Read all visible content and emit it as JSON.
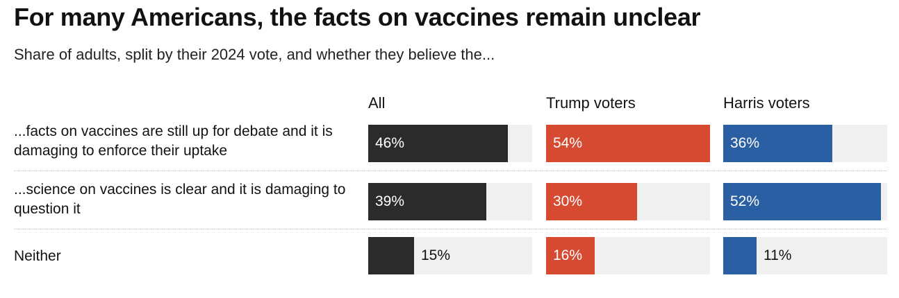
{
  "title": "For many Americans, the facts on vaccines remain unclear",
  "subtitle": "Share of adults, split by their 2024 vote, and whether they believe the...",
  "chart_data": {
    "type": "bar",
    "orientation": "horizontal",
    "xlim": [
      0,
      100
    ],
    "categories": [
      "...facts on vaccines are still up for debate and it is damaging to enforce their uptake",
      "...science on vaccines is clear and it is damaging to question it",
      "Neither"
    ],
    "series": [
      {
        "name": "All",
        "color": "#2b2b2b",
        "values": [
          46,
          39,
          15
        ],
        "labels": [
          "46%",
          "39%",
          "15%"
        ]
      },
      {
        "name": "Trump voters",
        "color": "#d64a32",
        "values": [
          54,
          30,
          16
        ],
        "labels": [
          "54%",
          "30%",
          "16%"
        ]
      },
      {
        "name": "Harris voters",
        "color": "#2b5fa3",
        "values": [
          36,
          52,
          11
        ],
        "labels": [
          "36%",
          "52%",
          "11%"
        ]
      }
    ],
    "grid": false,
    "legend": "none"
  }
}
